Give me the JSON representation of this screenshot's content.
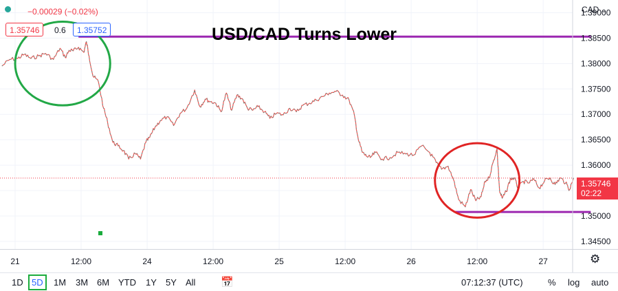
{
  "header": {
    "change": "−0.00029 (−0.02%)",
    "bid": "1.35746",
    "spread": "0.6",
    "ask": "1.35752",
    "currency": "CAD",
    "colors": {
      "down": "#f23645",
      "up": "#2962ff",
      "dot": "#26a69a"
    }
  },
  "price_tag": {
    "price": "1.35746",
    "countdown": "02:22",
    "color": "#f23645"
  },
  "toolbar": {
    "ranges": [
      "1D",
      "5D",
      "1M",
      "3M",
      "6M",
      "YTD",
      "1Y",
      "5Y",
      "All"
    ],
    "active_range": "5D",
    "time": "07:12:37 (UTC)",
    "percent": "%",
    "log": "log",
    "auto": "auto",
    "compare_icon": "calendar-range-icon",
    "settings_icon": "gear-icon"
  },
  "chart_data": {
    "type": "line",
    "title": "USD/CAD Turns Lower",
    "xlabel": "",
    "ylabel": "",
    "ylim": [
      1.3435,
      1.3925
    ],
    "xlim": [
      0,
      44
    ],
    "grid": true,
    "x_ticks": [
      {
        "x": 0,
        "label": "21"
      },
      {
        "x": 5,
        "label": "12:00"
      },
      {
        "x": 10,
        "label": "24"
      },
      {
        "x": 15,
        "label": "12:00"
      },
      {
        "x": 20,
        "label": "25"
      },
      {
        "x": 25,
        "label": "12:00"
      },
      {
        "x": 30,
        "label": "26"
      },
      {
        "x": 35,
        "label": "12:00"
      },
      {
        "x": 40,
        "label": "27"
      }
    ],
    "y_ticks": [
      1.345,
      1.35,
      1.355,
      1.36,
      1.365,
      1.37,
      1.375,
      1.38,
      1.385,
      1.39
    ],
    "y_tick_labels": [
      "1.34500",
      "1.35000",
      "1.35500",
      "1.36000",
      "1.36500",
      "1.37000",
      "1.37500",
      "1.38000",
      "1.38500",
      "1.39000"
    ],
    "series": [
      {
        "color": "#ef5350",
        "x": [
          -1.0,
          -0.4,
          0.2,
          0.7,
          1.2,
          1.8,
          2.3,
          2.9,
          3.4,
          3.8,
          4.1,
          4.4,
          4.8,
          5.2,
          5.4,
          5.6,
          5.9,
          6.3,
          6.7,
          7.0,
          7.4,
          7.8,
          8.2,
          8.6,
          9.1,
          9.5,
          9.9,
          10.2,
          10.6,
          11.0,
          11.5,
          12.0,
          12.5,
          13.0,
          13.6,
          14.0,
          14.4,
          14.8,
          15.2,
          15.6,
          16.0,
          16.4,
          16.8,
          17.2,
          17.6,
          18.0,
          18.4,
          18.9,
          19.3,
          19.8,
          20.3,
          20.8,
          21.3,
          21.8,
          22.3,
          22.8,
          23.3,
          23.8,
          24.3,
          24.8,
          25.3,
          25.7,
          26.0,
          26.3,
          26.6,
          26.9,
          27.3,
          27.8,
          28.4,
          29.0,
          29.6,
          30.2,
          30.8,
          31.4,
          31.9,
          32.3,
          32.8,
          33.2,
          33.6,
          34.1,
          34.5,
          34.9,
          35.3,
          35.6,
          35.9,
          36.2,
          36.5,
          36.7,
          36.9,
          37.2,
          37.5,
          37.8,
          38.1,
          38.5,
          38.9,
          39.3,
          39.7,
          40.1,
          40.5,
          40.9,
          41.3,
          41.7,
          42.0,
          42.3
        ],
        "y": [
          1.3795,
          1.3808,
          1.381,
          1.3818,
          1.381,
          1.3815,
          1.382,
          1.3808,
          1.383,
          1.3812,
          1.3826,
          1.3825,
          1.3832,
          1.3822,
          1.3843,
          1.3815,
          1.3775,
          1.3765,
          1.3712,
          1.3685,
          1.3645,
          1.3638,
          1.3629,
          1.3612,
          1.3623,
          1.3612,
          1.3645,
          1.3655,
          1.3675,
          1.3688,
          1.3695,
          1.3678,
          1.3702,
          1.3712,
          1.3748,
          1.3715,
          1.373,
          1.3725,
          1.3722,
          1.3705,
          1.3742,
          1.3708,
          1.3738,
          1.3731,
          1.3712,
          1.3708,
          1.3715,
          1.3705,
          1.3692,
          1.3702,
          1.3699,
          1.3712,
          1.3705,
          1.3718,
          1.3722,
          1.3728,
          1.3735,
          1.3742,
          1.3745,
          1.3738,
          1.3728,
          1.3698,
          1.365,
          1.3625,
          1.3618,
          1.3615,
          1.3625,
          1.3612,
          1.3615,
          1.3625,
          1.3622,
          1.362,
          1.3638,
          1.3625,
          1.3605,
          1.3592,
          1.3598,
          1.3572,
          1.3532,
          1.3518,
          1.3552,
          1.353,
          1.3538,
          1.3568,
          1.3575,
          1.3605,
          1.3632,
          1.3548,
          1.3535,
          1.3548,
          1.3572,
          1.3575,
          1.3555,
          1.3568,
          1.3565,
          1.3572,
          1.3555,
          1.3569,
          1.3575,
          1.3562,
          1.3575,
          1.3565,
          1.3552,
          1.3575
        ]
      }
    ],
    "reference_lines": [
      {
        "y": 1.3853,
        "from_x": 4.8,
        "to_x": 43.6,
        "color": "#9c27b0"
      },
      {
        "y": 1.3508,
        "from_x": 33.3,
        "to_x": 43.6,
        "color": "#9c27b0"
      }
    ],
    "current_price": 1.35746,
    "annotations": [
      {
        "shape": "circle",
        "color": "#22a846",
        "cx": 3.6,
        "cy": 1.38,
        "r_data_x": 3.6
      },
      {
        "shape": "circle",
        "color": "#e02424",
        "cx": 35.0,
        "cy": 1.357,
        "r_data_x": 3.2
      }
    ]
  }
}
